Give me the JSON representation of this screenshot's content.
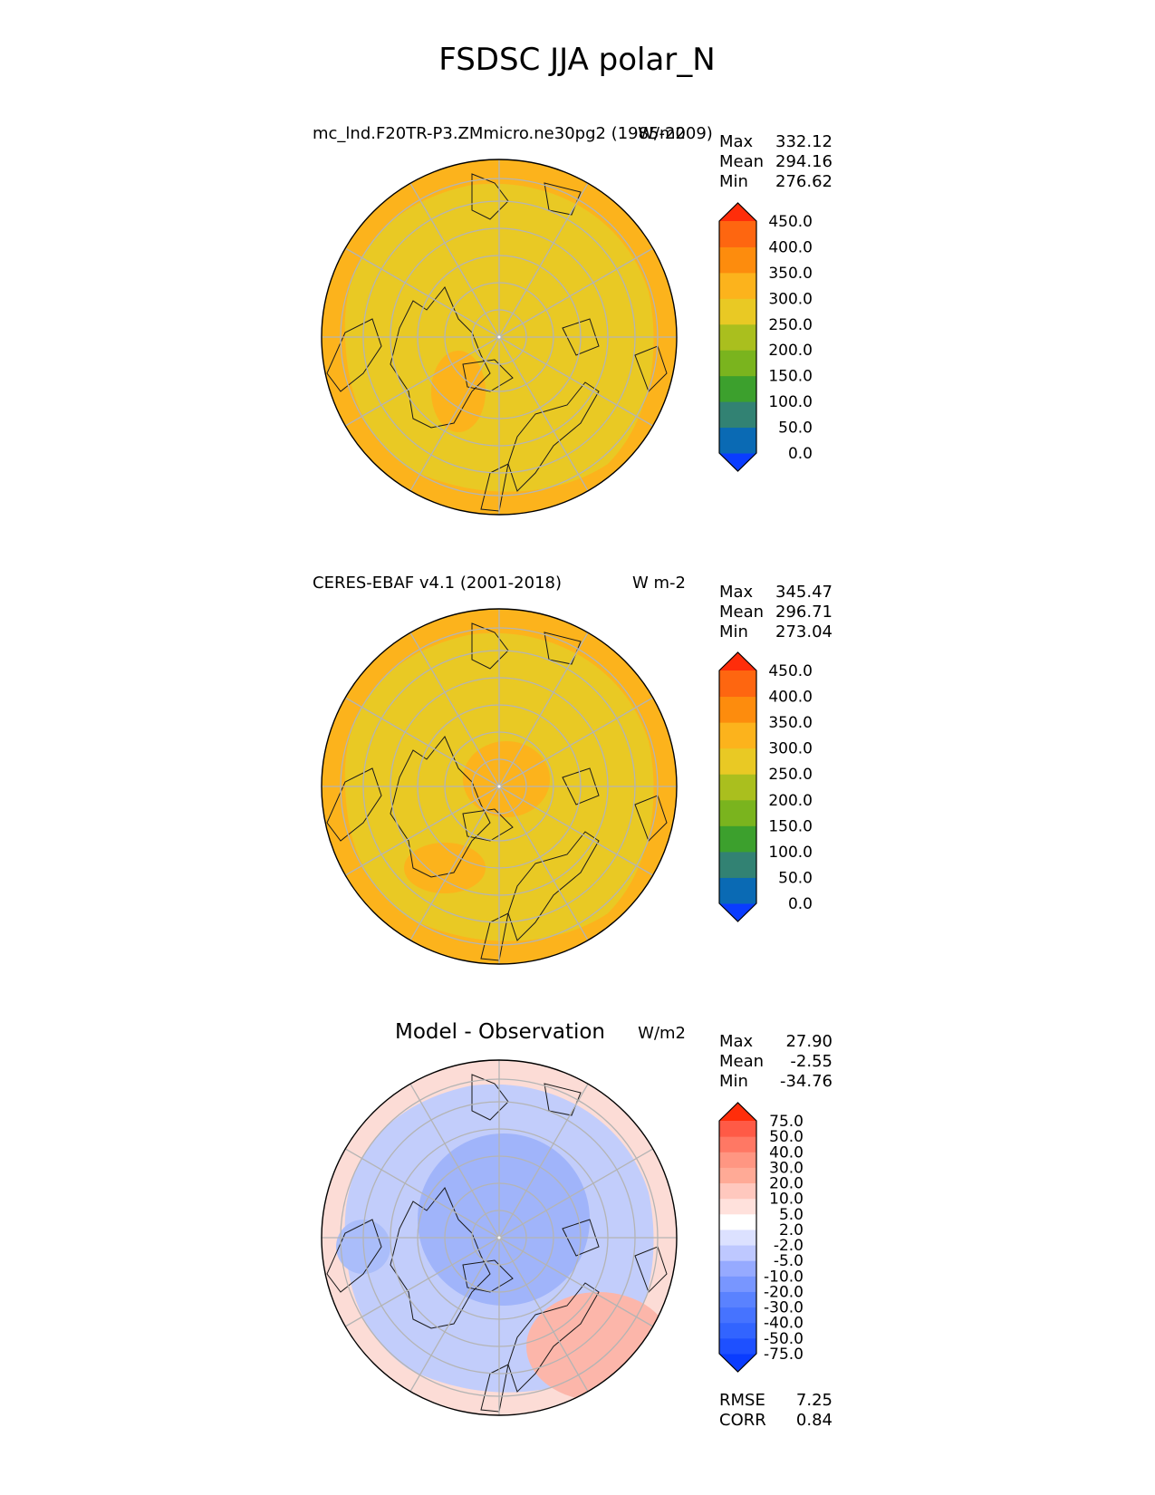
{
  "figure_title": "FSDSC JJA polar_N",
  "colors": {
    "land_outline": "#1a1a1a",
    "grid": "#b4b4b4"
  },
  "chart_data": [
    {
      "type": "heatmap",
      "projection": "north polar stereographic",
      "title": "mc_lnd.F20TR-P3.ZMmicro.ne30pg2 (1985-2009)",
      "units": "W/m2",
      "stats": {
        "Max": "332.12",
        "Mean": "294.16",
        "Min": "276.62"
      },
      "colorbar": {
        "levels": [
          "0.0",
          "50.0",
          "100.0",
          "150.0",
          "200.0",
          "250.0",
          "300.0",
          "350.0",
          "400.0",
          "450.0"
        ],
        "colors": [
          "#0a3cff",
          "#0a6ab4",
          "#328273",
          "#3ca02d",
          "#7ab41e",
          "#aabf1e",
          "#e9c924",
          "#fcb31c",
          "#fd8c0d",
          "#fe6610",
          "#ff2d0a"
        ]
      },
      "field_colors": {
        "outer": "#fcb31c",
        "inner": "#e9c924"
      }
    },
    {
      "type": "heatmap",
      "projection": "north polar stereographic",
      "title": "CERES-EBAF v4.1 (2001-2018)",
      "units": "W m-2",
      "stats": {
        "Max": "345.47",
        "Mean": "296.71",
        "Min": "273.04"
      },
      "colorbar": {
        "levels": [
          "0.0",
          "50.0",
          "100.0",
          "150.0",
          "200.0",
          "250.0",
          "300.0",
          "350.0",
          "400.0",
          "450.0"
        ],
        "colors": [
          "#0a3cff",
          "#0a6ab4",
          "#328273",
          "#3ca02d",
          "#7ab41e",
          "#aabf1e",
          "#e9c924",
          "#fcb31c",
          "#fd8c0d",
          "#fe6610",
          "#ff2d0a"
        ]
      },
      "field_colors": {
        "outer": "#fcb31c",
        "inner": "#e9c924"
      }
    },
    {
      "type": "heatmap",
      "projection": "north polar stereographic",
      "title": "Model - Observation",
      "units": "W/m2",
      "stats": {
        "Max": "27.90",
        "Mean": "-2.55",
        "Min": "-34.76"
      },
      "colorbar": {
        "levels": [
          "-75.0",
          "-50.0",
          "-40.0",
          "-30.0",
          "-20.0",
          "-10.0",
          "-5.0",
          "-2.0",
          "2.0",
          "5.0",
          "10.0",
          "20.0",
          "30.0",
          "40.0",
          "50.0",
          "75.0"
        ],
        "colors": [
          "#0a3cff",
          "#1e50ff",
          "#3264ff",
          "#4673ff",
          "#5a82ff",
          "#7896ff",
          "#96aaff",
          "#bec8ff",
          "#dce1ff",
          "#ffffff",
          "#ffe1dc",
          "#ffc8be",
          "#ffaa96",
          "#ff9682",
          "#ff7864",
          "#ff5a46",
          "#ff2d0a"
        ]
      },
      "field_colors": {
        "outer": "#fcdcd6",
        "inner": "#c2cdfb"
      },
      "metrics": {
        "RMSE": "7.25",
        "CORR": "0.84"
      }
    }
  ]
}
